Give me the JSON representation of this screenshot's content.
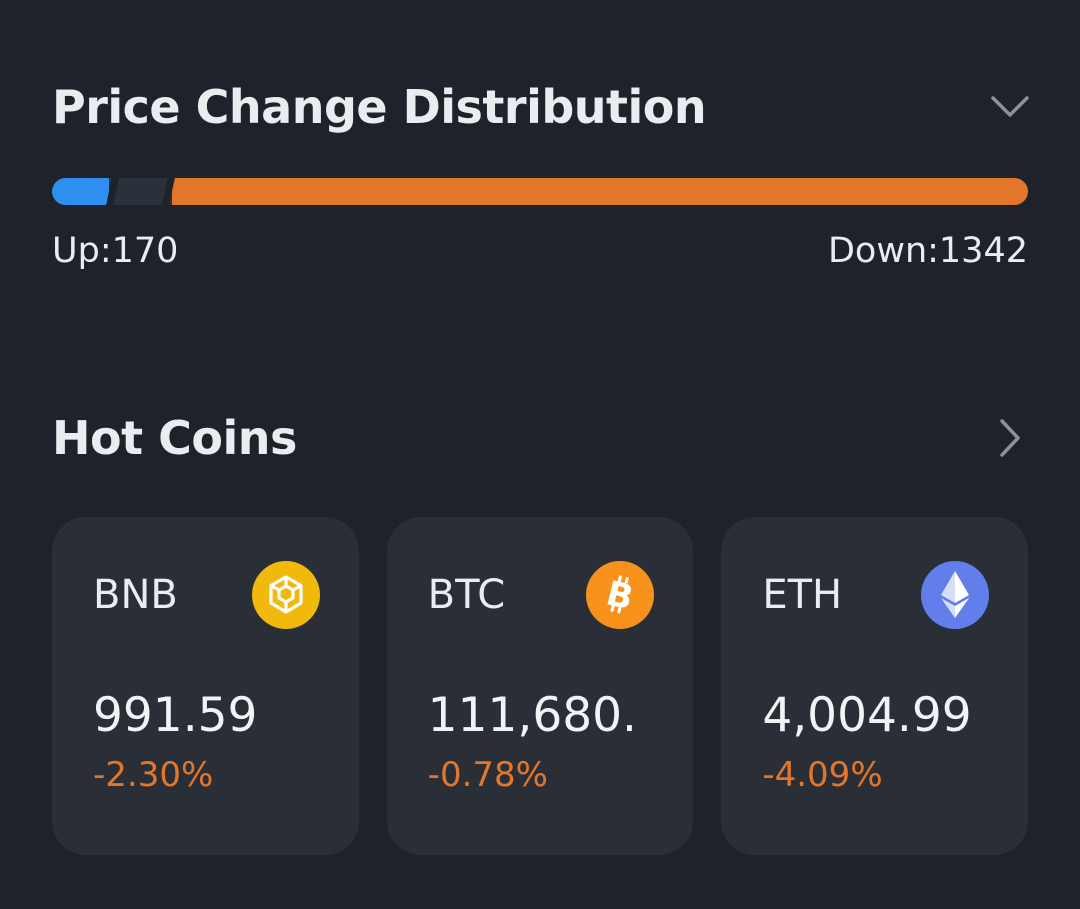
{
  "distribution": {
    "title": "Price Change Distribution",
    "up_label": "Up:170",
    "down_label": "Down:1342",
    "up_count": 170,
    "down_count": 1342,
    "colors": {
      "up": "#2f8ff0",
      "down": "#e2772c",
      "flat": "#2b313a"
    }
  },
  "hot_coins": {
    "title": "Hot Coins",
    "coins": [
      {
        "symbol": "BNB",
        "price": "991.59",
        "change": "-2.30%",
        "icon": "bnb-icon",
        "icon_color": "#f0b90b"
      },
      {
        "symbol": "BTC",
        "price": "111,680.",
        "change": "-0.78%",
        "icon": "btc-icon",
        "icon_color": "#f7931a"
      },
      {
        "symbol": "ETH",
        "price": "4,004.99",
        "change": "-4.09%",
        "icon": "eth-icon",
        "icon_color": "#627eea"
      }
    ]
  },
  "colors": {
    "background": "#1e222a",
    "card": "#292e37",
    "text": "#eaecef",
    "negative": "#e2772c"
  }
}
